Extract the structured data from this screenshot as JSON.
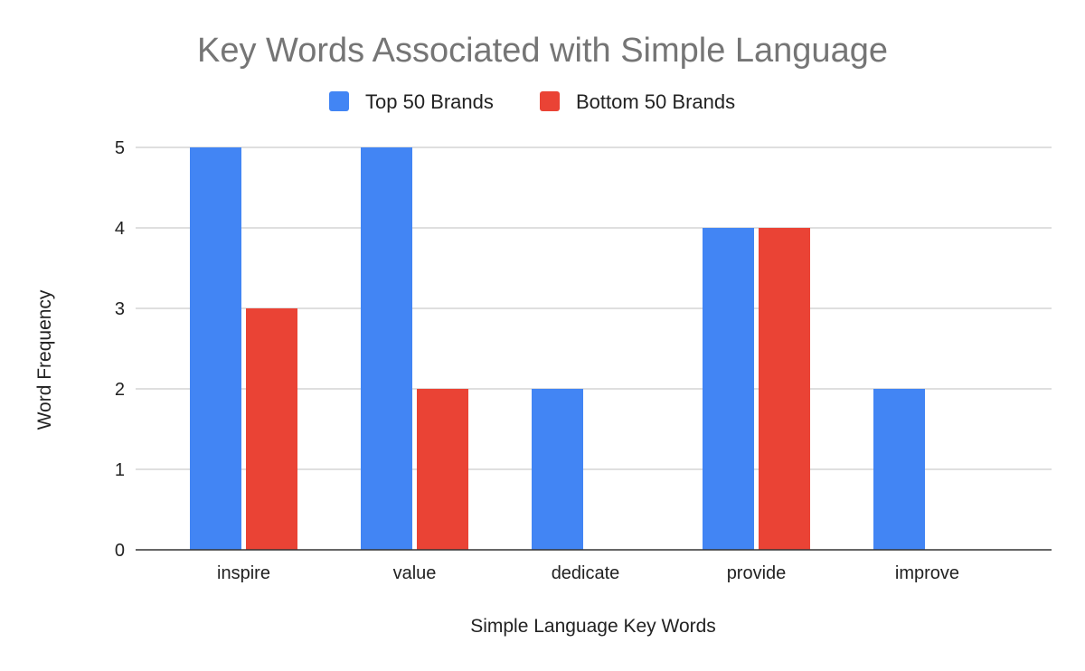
{
  "chart_data": {
    "type": "bar",
    "title": "Key Words Associated with Simple Language",
    "xlabel": "Simple Language Key Words",
    "ylabel": "Word Frequency",
    "categories": [
      "inspire",
      "value",
      "dedicate",
      "provide",
      "improve"
    ],
    "series": [
      {
        "name": "Top 50 Brands",
        "color": "#4285f4",
        "values": [
          5,
          5,
          2,
          4,
          2
        ]
      },
      {
        "name": "Bottom 50 Brands",
        "color": "#ea4335",
        "values": [
          3,
          2,
          0,
          4,
          0
        ]
      }
    ],
    "ylim": [
      0,
      5
    ],
    "yticks": [
      0,
      1,
      2,
      3,
      4,
      5
    ],
    "grid": true,
    "legend_position": "top"
  }
}
